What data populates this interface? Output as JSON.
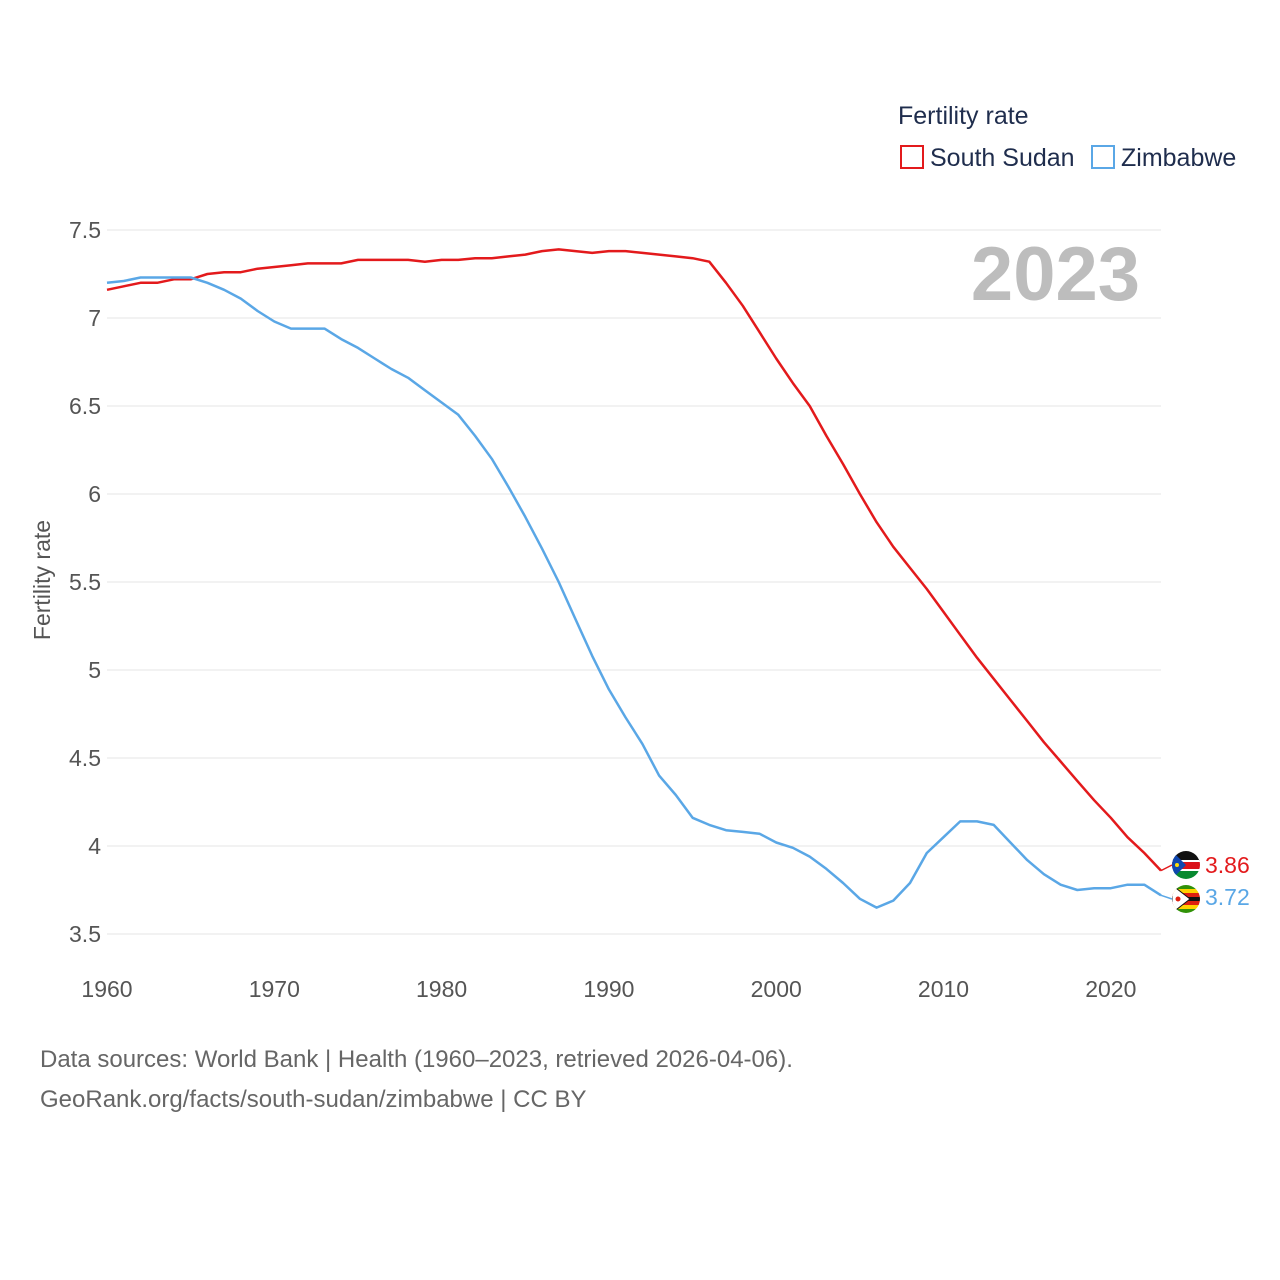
{
  "chart_data": {
    "type": "line",
    "legend_title": "Fertility rate",
    "ylabel": "Fertility rate",
    "year_label": "2023",
    "ylim": [
      3.5,
      7.5
    ],
    "xlim": [
      1960,
      2023
    ],
    "y_ticks": [
      "3.5",
      "4",
      "4.5",
      "5",
      "5.5",
      "6",
      "6.5",
      "7",
      "7.5"
    ],
    "x_ticks": [
      "1960",
      "1970",
      "1980",
      "1990",
      "2000",
      "2010",
      "2020"
    ],
    "x": [
      1960,
      1961,
      1962,
      1963,
      1964,
      1965,
      1966,
      1967,
      1968,
      1969,
      1970,
      1971,
      1972,
      1973,
      1974,
      1975,
      1976,
      1977,
      1978,
      1979,
      1980,
      1981,
      1982,
      1983,
      1984,
      1985,
      1986,
      1987,
      1988,
      1989,
      1990,
      1991,
      1992,
      1993,
      1994,
      1995,
      1996,
      1997,
      1998,
      1999,
      2000,
      2001,
      2002,
      2003,
      2004,
      2005,
      2006,
      2007,
      2008,
      2009,
      2010,
      2011,
      2012,
      2013,
      2014,
      2015,
      2016,
      2017,
      2018,
      2019,
      2020,
      2021,
      2022,
      2023
    ],
    "series": [
      {
        "name": "South Sudan",
        "color": "#e31a1c",
        "end_label": "3.86",
        "values": [
          7.16,
          7.18,
          7.2,
          7.2,
          7.22,
          7.22,
          7.25,
          7.26,
          7.26,
          7.28,
          7.29,
          7.3,
          7.31,
          7.31,
          7.31,
          7.33,
          7.33,
          7.33,
          7.33,
          7.32,
          7.33,
          7.33,
          7.34,
          7.34,
          7.35,
          7.36,
          7.38,
          7.39,
          7.38,
          7.37,
          7.38,
          7.38,
          7.37,
          7.36,
          7.35,
          7.34,
          7.32,
          7.2,
          7.07,
          6.92,
          6.77,
          6.63,
          6.5,
          6.33,
          6.17,
          6.0,
          5.84,
          5.7,
          5.58,
          5.46,
          5.33,
          5.2,
          5.07,
          4.95,
          4.83,
          4.71,
          4.59,
          4.48,
          4.37,
          4.26,
          4.16,
          4.05,
          3.96,
          3.86
        ]
      },
      {
        "name": "Zimbabwe",
        "color": "#5aa7e6",
        "end_label": "3.72",
        "values": [
          7.2,
          7.21,
          7.23,
          7.23,
          7.23,
          7.23,
          7.2,
          7.16,
          7.11,
          7.04,
          6.98,
          6.94,
          6.94,
          6.94,
          6.88,
          6.83,
          6.77,
          6.71,
          6.66,
          6.59,
          6.52,
          6.45,
          6.33,
          6.2,
          6.04,
          5.87,
          5.69,
          5.5,
          5.29,
          5.08,
          4.89,
          4.73,
          4.58,
          4.4,
          4.29,
          4.16,
          4.12,
          4.09,
          4.08,
          4.07,
          4.02,
          3.99,
          3.94,
          3.87,
          3.79,
          3.7,
          3.65,
          3.69,
          3.79,
          3.96,
          4.05,
          4.14,
          4.14,
          4.12,
          4.02,
          3.92,
          3.84,
          3.78,
          3.75,
          3.76,
          3.76,
          3.78,
          3.78,
          3.72
        ]
      }
    ]
  },
  "footer": {
    "line1": "Data sources: World Bank | Health (1960–2023, retrieved 2026-04-06).",
    "line2": "GeoRank.org/facts/south-sudan/zimbabwe | CC BY"
  }
}
